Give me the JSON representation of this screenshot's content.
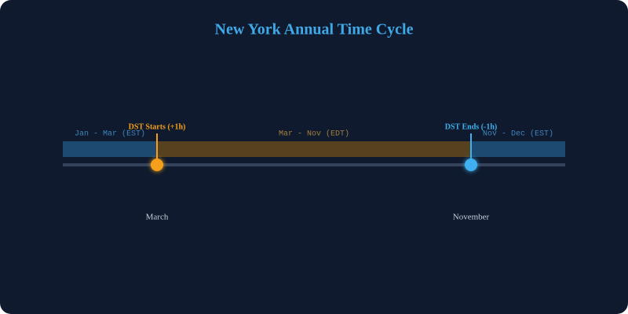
{
  "title": "New York Annual Time Cycle",
  "segments": [
    {
      "label": "Jan - Mar (EST)"
    },
    {
      "label": "Mar - Nov (EDT)"
    },
    {
      "label": "Nov - Dec (EST)"
    }
  ],
  "events": [
    {
      "label": "DST Starts (+1h)",
      "month": "March"
    },
    {
      "label": "DST Ends (-1h)",
      "month": "November"
    }
  ]
}
